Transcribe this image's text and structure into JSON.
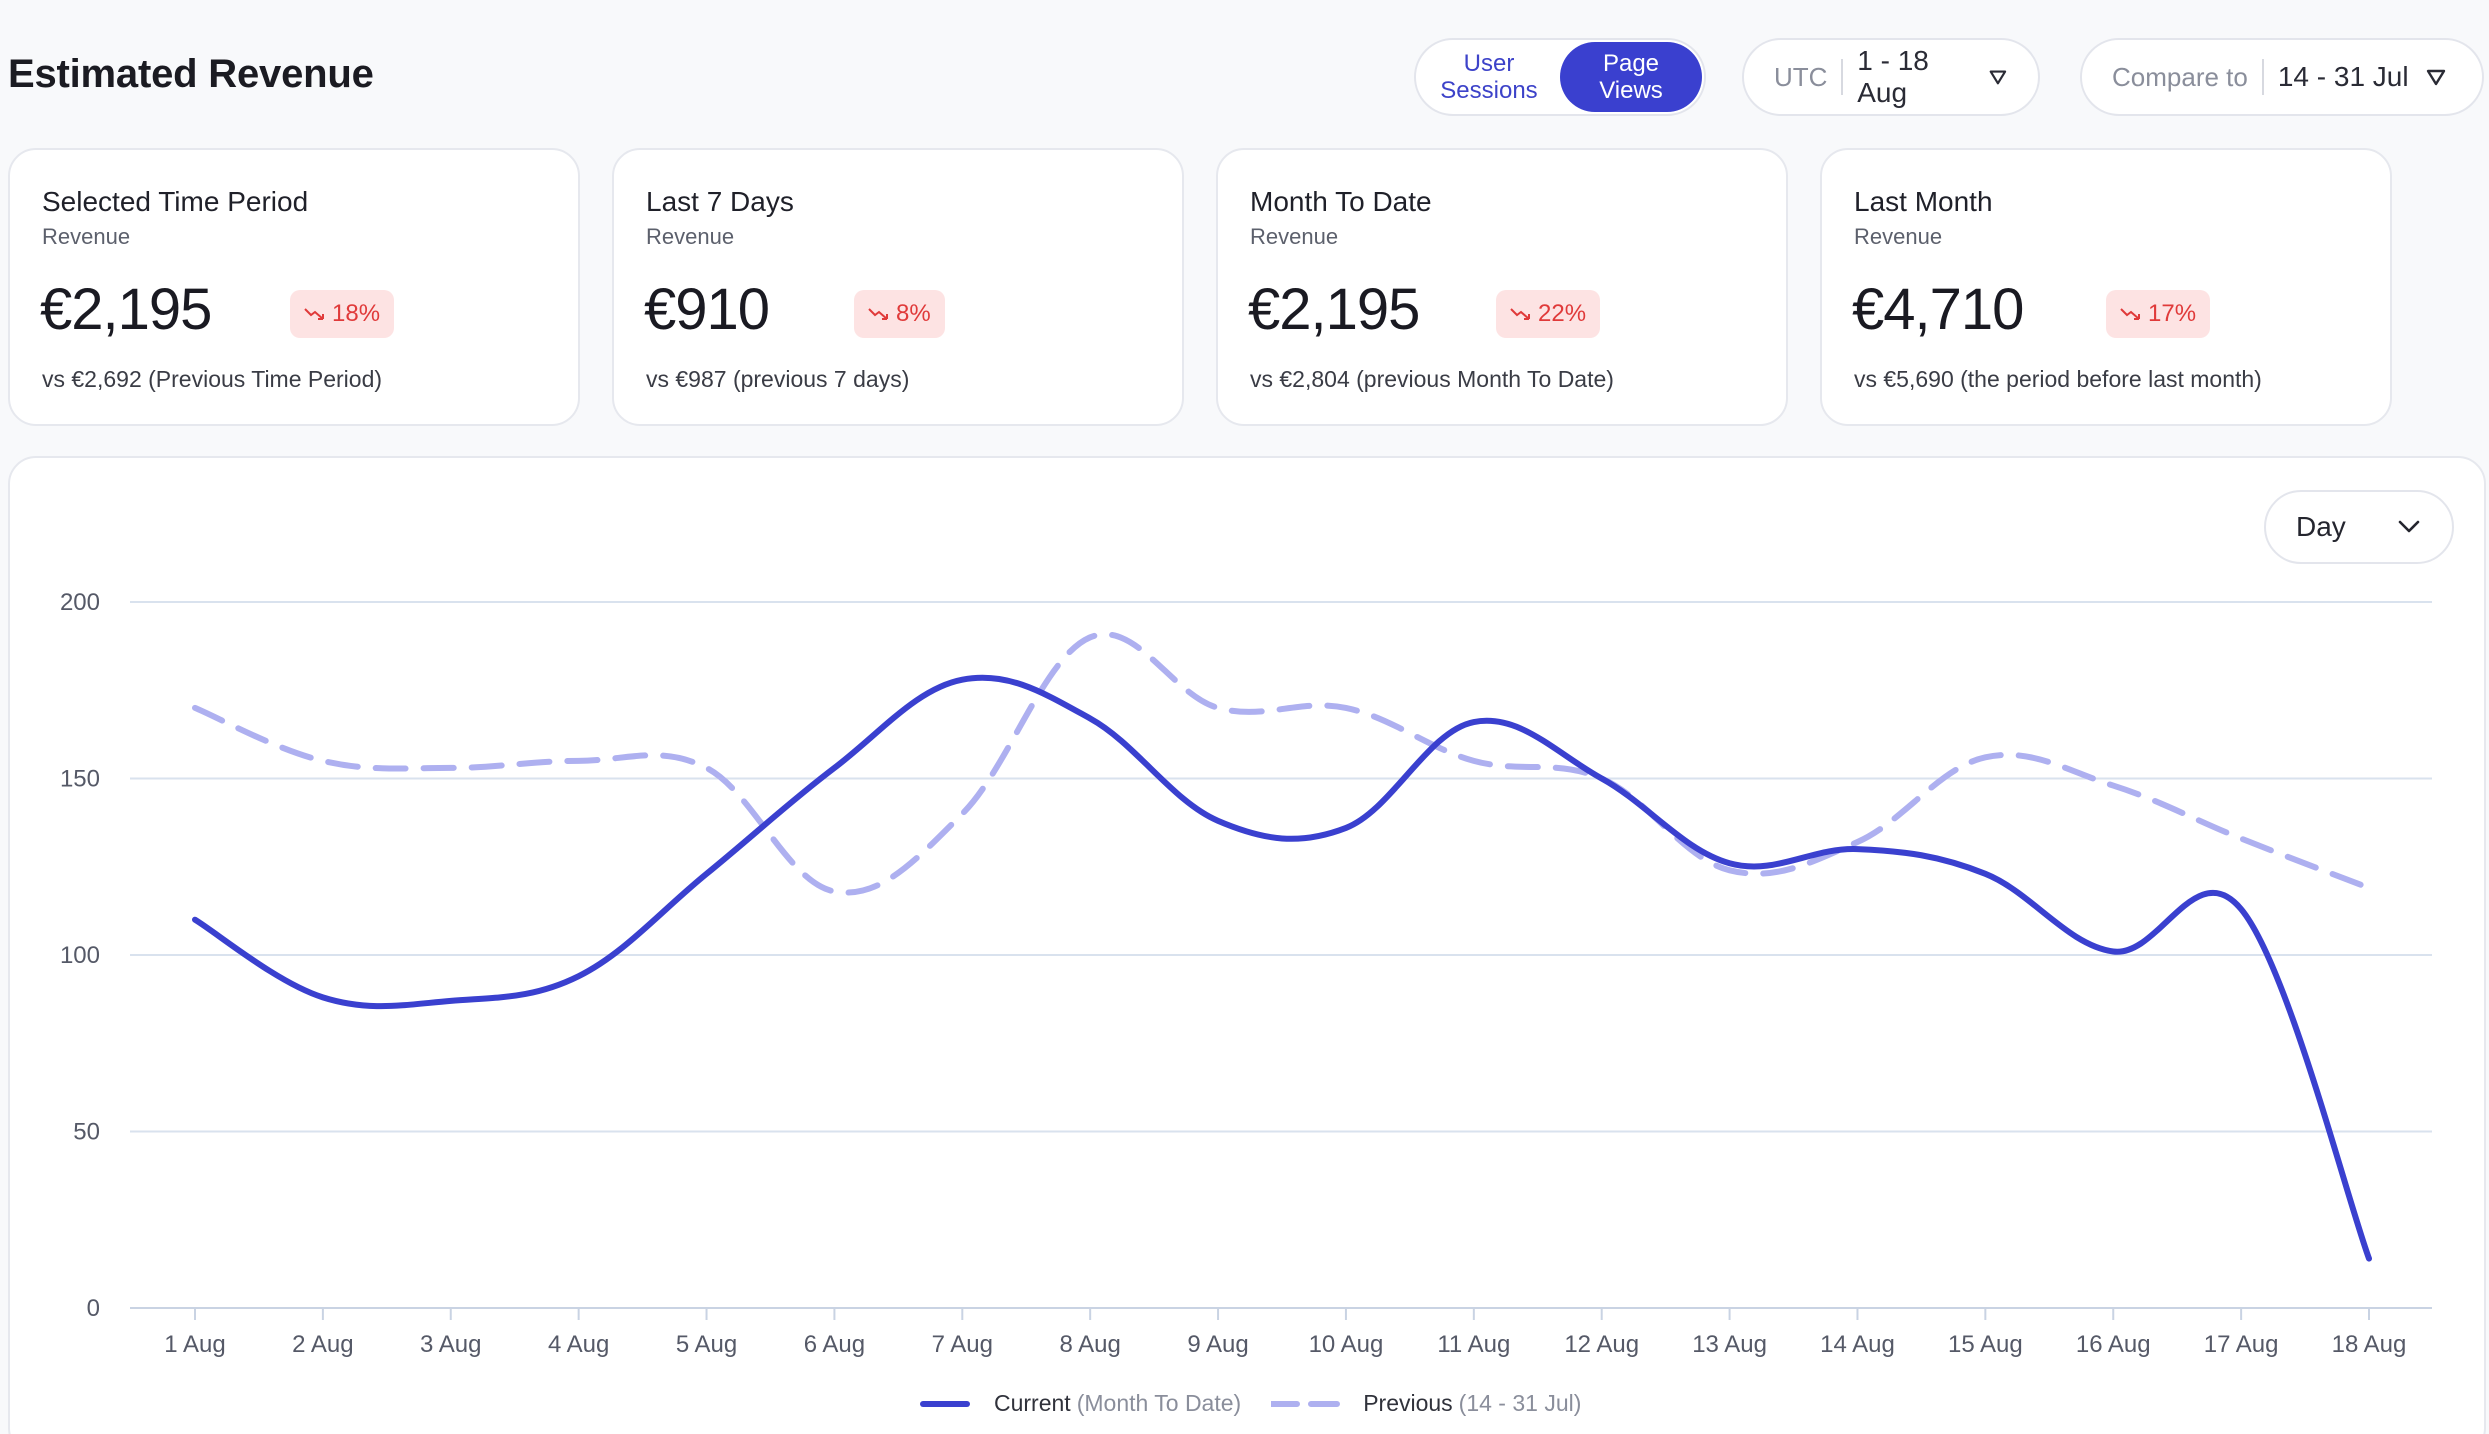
{
  "header": {
    "title": "Estimated Revenue",
    "toggle": [
      "User\nSessions",
      "Page\nViews"
    ],
    "timezone": "UTC",
    "date_range": "1 - 18 Aug",
    "compare_label": "Compare to",
    "compare_range": "14 - 31 Jul"
  },
  "cards": [
    {
      "title": "Selected Time Period",
      "subtitle": "Revenue",
      "value": "€2,195",
      "change": "18%",
      "comparison": "vs €2,692 (Previous Time Period)"
    },
    {
      "title": "Last 7 Days",
      "subtitle": "Revenue",
      "value": "€910",
      "change": "8%",
      "comparison": "vs €987 (previous 7 days)"
    },
    {
      "title": "Month To Date",
      "subtitle": "Revenue",
      "value": "€2,195",
      "change": "22%",
      "comparison": "vs €2,804 (previous Month To Date)"
    },
    {
      "title": "Last Month",
      "subtitle": "Revenue",
      "value": "€4,710",
      "change": "17%",
      "comparison": "vs €5,690 (the period before last month)"
    }
  ],
  "granularity": "Day",
  "legend": {
    "current": "Current",
    "current_note": "(Month To Date)",
    "previous": "Previous",
    "previous_note": "(14 - 31 Jul)"
  },
  "colors": {
    "accent": "#3a40cf",
    "previous": "#aeb0f0",
    "negative": "#e03a3a",
    "negative_bg": "#fde3e3"
  },
  "chart_data": {
    "type": "line",
    "categories": [
      "1 Aug",
      "2 Aug",
      "3 Aug",
      "4 Aug",
      "5 Aug",
      "6 Aug",
      "7 Aug",
      "8 Aug",
      "9 Aug",
      "10 Aug",
      "11 Aug",
      "12 Aug",
      "13 Aug",
      "14 Aug",
      "15 Aug",
      "16 Aug",
      "17 Aug",
      "18 Aug"
    ],
    "series": [
      {
        "name": "Current",
        "style": "solid",
        "values": [
          110,
          88,
          87,
          94,
          123,
          153,
          178,
          167,
          138,
          136,
          166,
          150,
          126,
          130,
          123,
          101,
          113,
          14
        ]
      },
      {
        "name": "Previous",
        "style": "dashed",
        "values": [
          170,
          155,
          153,
          155,
          153,
          118,
          140,
          190,
          170,
          170,
          155,
          150,
          124,
          132,
          156,
          148,
          133,
          119
        ]
      }
    ],
    "ylim": [
      0,
      200
    ],
    "yticks": [
      0,
      50,
      100,
      150,
      200
    ],
    "grid": true
  }
}
